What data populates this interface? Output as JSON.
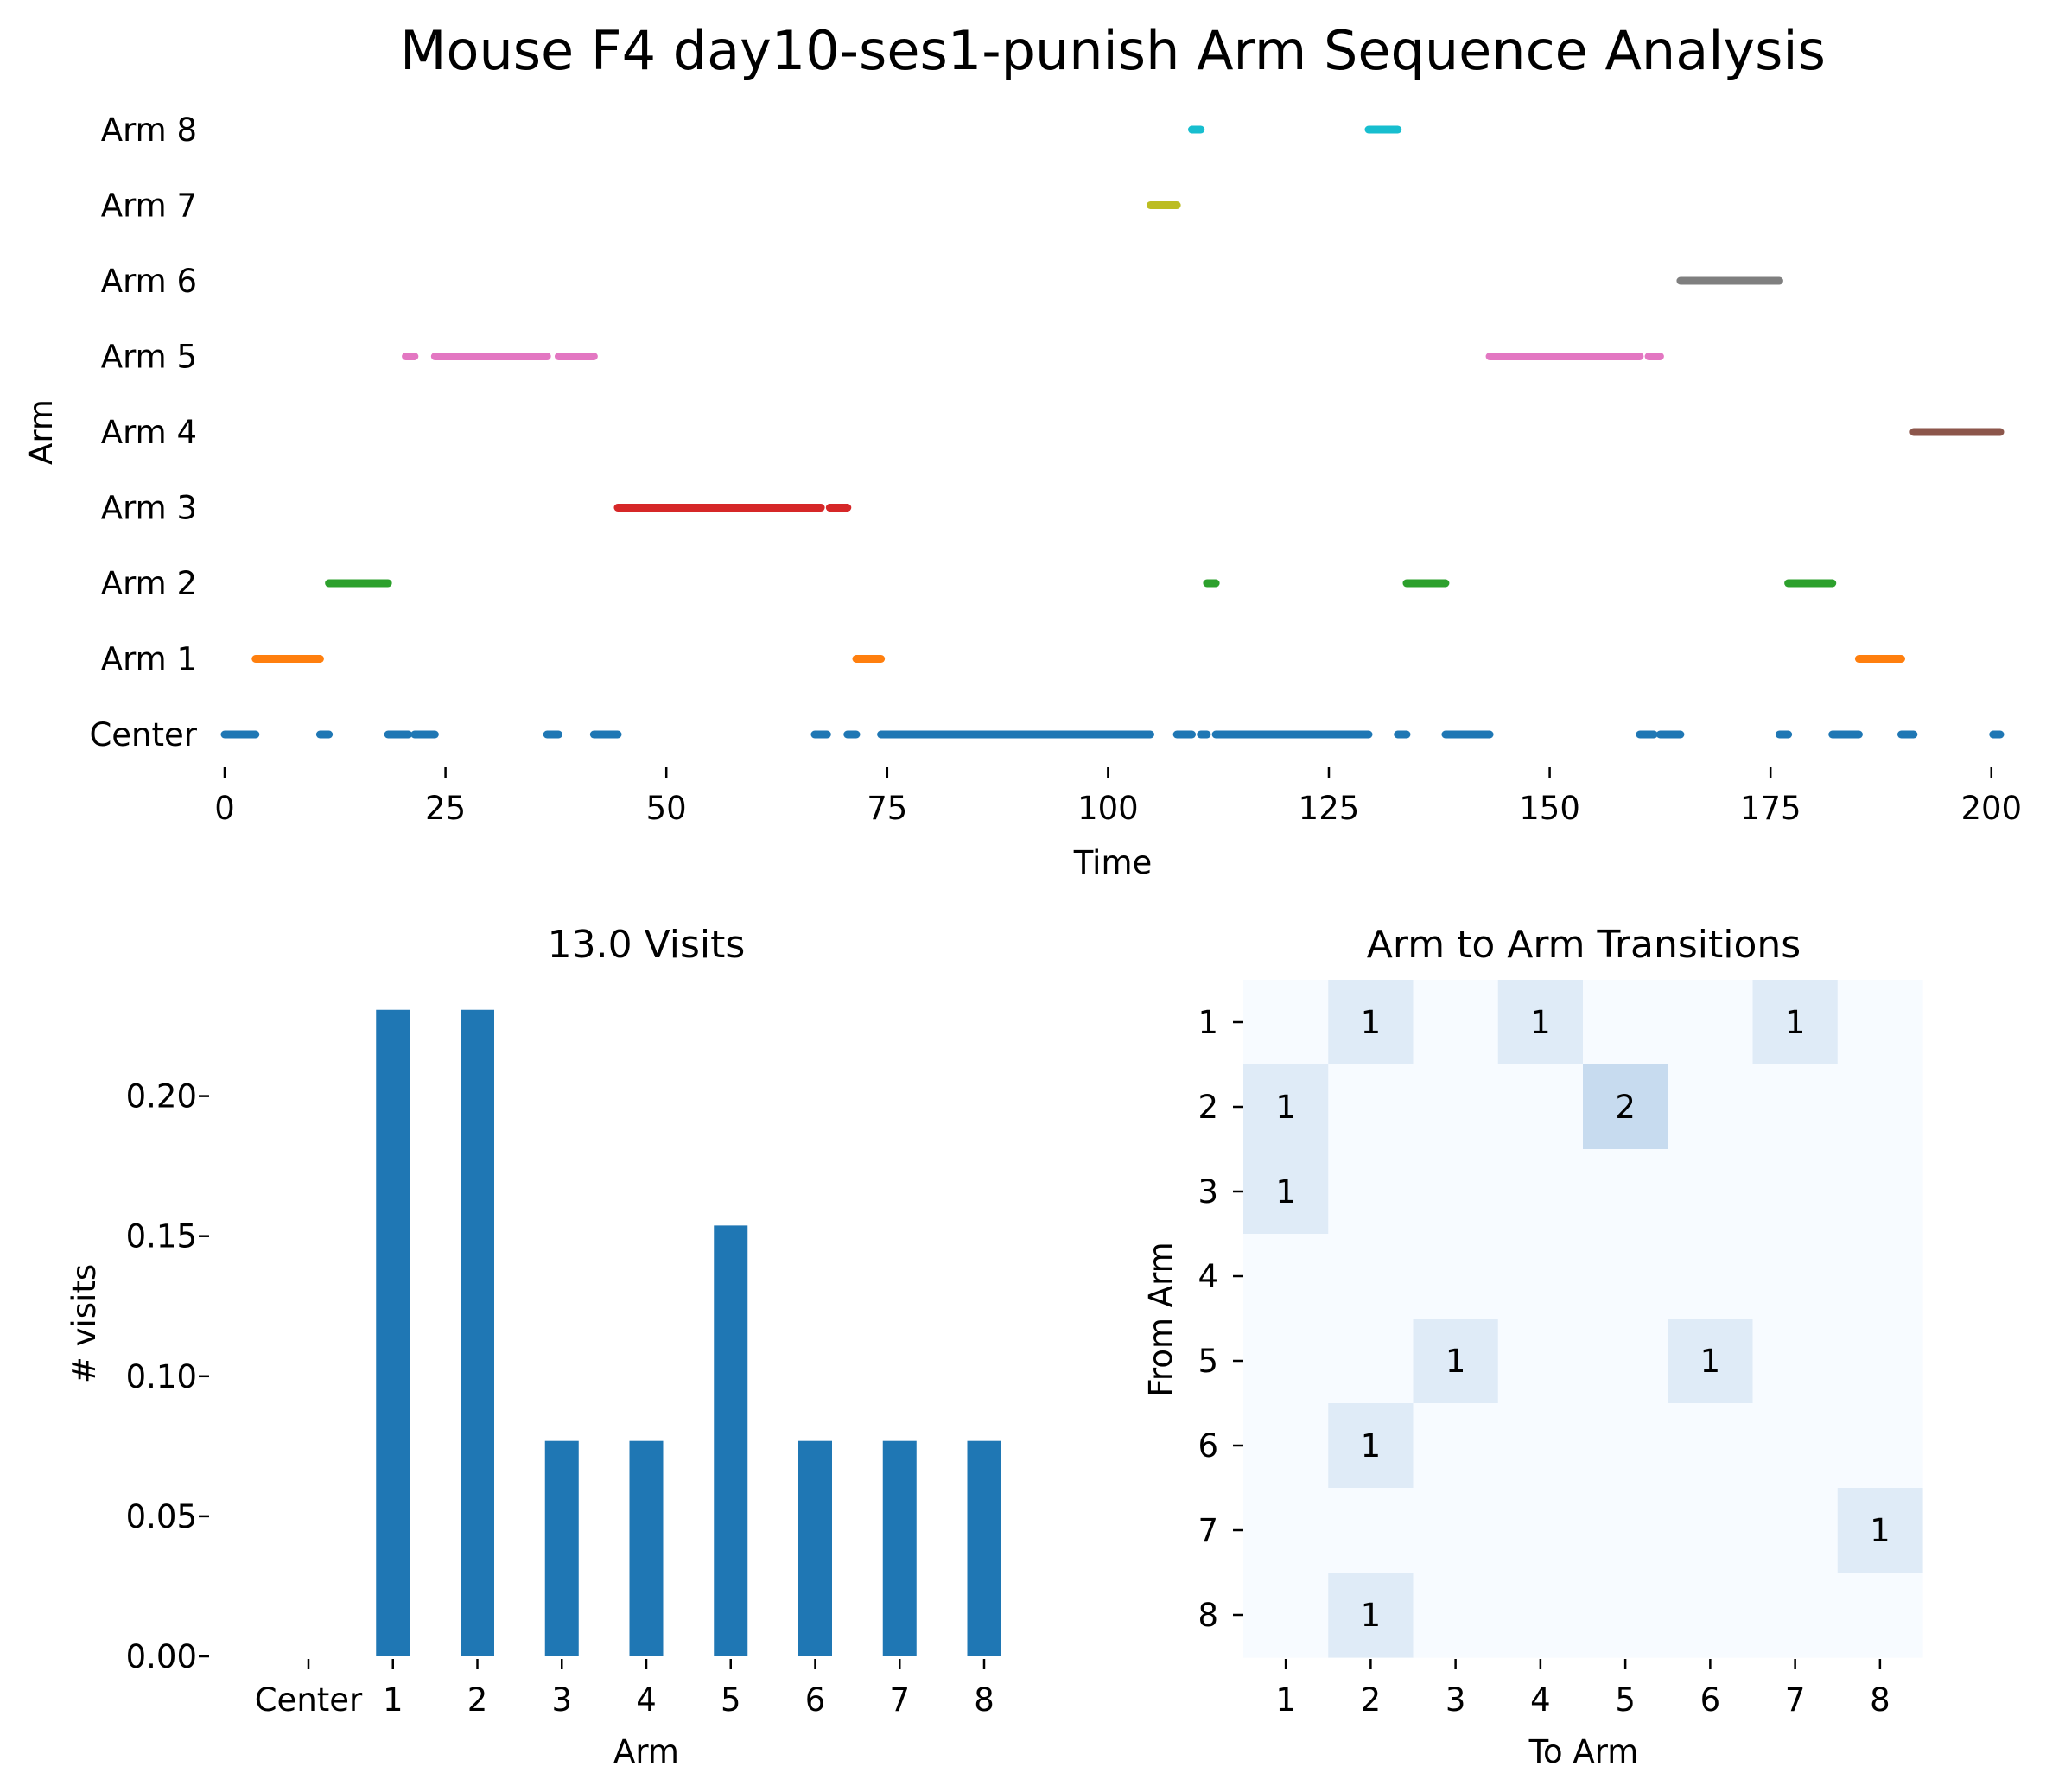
{
  "title": "Mouse F4 day10-ses1-punish Arm Sequence Analysis",
  "chart_data": [
    {
      "id": "timeline",
      "type": "line",
      "xlabel": "Time",
      "ylabel": "Arm",
      "xlim": [
        0,
        201
      ],
      "xticks": [
        "0",
        "25",
        "50",
        "75",
        "100",
        "125",
        "150",
        "175",
        "200"
      ],
      "categories": [
        "Center",
        "Arm 1",
        "Arm 2",
        "Arm 3",
        "Arm 4",
        "Arm 5",
        "Arm 6",
        "Arm 7",
        "Arm 8"
      ],
      "grid": false,
      "series": [
        {
          "category": "Center",
          "color": "#1f77b4",
          "segments": [
            [
              0,
              3.5
            ],
            [
              10.8,
              11.8
            ],
            [
              18.5,
              20.8
            ],
            [
              21.5,
              23.8
            ],
            [
              36.5,
              37.8
            ],
            [
              41.8,
              44.5
            ],
            [
              66.8,
              68.2
            ],
            [
              70.5,
              71.5
            ],
            [
              74.3,
              104.8
            ],
            [
              107.8,
              109.5
            ],
            [
              110.5,
              111.2
            ],
            [
              112.2,
              129.5
            ],
            [
              132.8,
              133.8
            ],
            [
              138.2,
              143.2
            ],
            [
              160.2,
              161.8
            ],
            [
              162.5,
              164.8
            ],
            [
              176,
              177
            ],
            [
              182,
              185
            ],
            [
              189.8,
              191.2
            ],
            [
              200.2,
              201
            ]
          ]
        },
        {
          "category": "Arm 1",
          "color": "#ff7f0e",
          "segments": [
            [
              3.5,
              10.8
            ],
            [
              71.5,
              74.3
            ],
            [
              185,
              189.8
            ]
          ]
        },
        {
          "category": "Arm 2",
          "color": "#2ca02c",
          "segments": [
            [
              11.8,
              18.5
            ],
            [
              111.2,
              112.2
            ],
            [
              133.8,
              138.2
            ],
            [
              177,
              182
            ]
          ]
        },
        {
          "category": "Arm 3",
          "color": "#d62728",
          "segments": [
            [
              44.5,
              67.5
            ],
            [
              68.5,
              70.5
            ]
          ]
        },
        {
          "category": "Arm 4",
          "color": "#8c564b",
          "segments": [
            [
              191.2,
              201
            ]
          ]
        },
        {
          "category": "Arm 5",
          "color": "#e377c2",
          "segments": [
            [
              20.5,
              21.5
            ],
            [
              23.8,
              36.5
            ],
            [
              37.8,
              41.8
            ],
            [
              143.2,
              160.2
            ],
            [
              161.2,
              162.5
            ]
          ]
        },
        {
          "category": "Arm 6",
          "color": "#7f7f7f",
          "segments": [
            [
              164.8,
              176
            ]
          ]
        },
        {
          "category": "Arm 7",
          "color": "#bcbd22",
          "segments": [
            [
              104.8,
              107.8
            ]
          ]
        },
        {
          "category": "Arm 8",
          "color": "#17becf",
          "segments": [
            [
              109.5,
              110.5
            ],
            [
              129.5,
              132.8
            ]
          ]
        }
      ]
    },
    {
      "id": "visits",
      "type": "bar",
      "title": "13.0 Visits",
      "xlabel": "Arm",
      "ylabel": "# visits",
      "categories": [
        "Center",
        "1",
        "2",
        "3",
        "4",
        "5",
        "6",
        "7",
        "8"
      ],
      "values": [
        0,
        0.2308,
        0.2308,
        0.0769,
        0.0769,
        0.1538,
        0.0769,
        0.0769,
        0.0769
      ],
      "yticks": [
        "0.00",
        "0.05",
        "0.10",
        "0.15",
        "0.20"
      ],
      "ylim": [
        0,
        0.23
      ],
      "color": "#1f77b4"
    },
    {
      "id": "transitions",
      "type": "heatmap",
      "title": "Arm to Arm Transitions",
      "xlabel": "To Arm",
      "ylabel": "From Arm",
      "x": [
        "1",
        "2",
        "3",
        "4",
        "5",
        "6",
        "7",
        "8"
      ],
      "y": [
        "1",
        "2",
        "3",
        "4",
        "5",
        "6",
        "7",
        "8"
      ],
      "values": [
        [
          0,
          1,
          0,
          1,
          0,
          0,
          1,
          0
        ],
        [
          1,
          0,
          0,
          0,
          2,
          0,
          0,
          0
        ],
        [
          1,
          0,
          0,
          0,
          0,
          0,
          0,
          0
        ],
        [
          0,
          0,
          0,
          0,
          0,
          0,
          0,
          0
        ],
        [
          0,
          0,
          1,
          0,
          0,
          1,
          0,
          0
        ],
        [
          0,
          1,
          0,
          0,
          0,
          0,
          0,
          0
        ],
        [
          0,
          0,
          0,
          0,
          0,
          0,
          0,
          1
        ],
        [
          0,
          1,
          0,
          0,
          0,
          0,
          0,
          0
        ]
      ],
      "colors": [
        "#f7fbff",
        "#dfebf7",
        "#c7dbef"
      ]
    }
  ]
}
